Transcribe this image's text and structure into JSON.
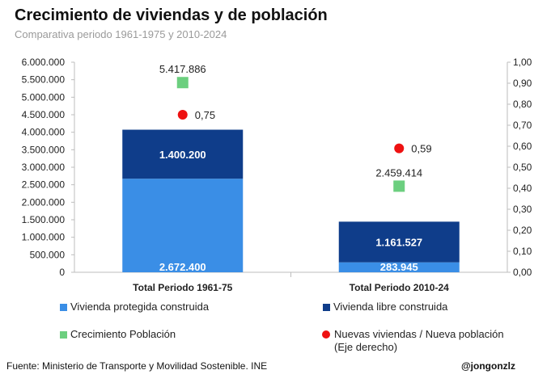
{
  "title": "Crecimiento de viviendas y de población",
  "subtitle": "Comparativa periodo 1961-1975 y 2010-2024",
  "colors": {
    "protegida": "#3a8ee6",
    "libre": "#0f3d8a",
    "poblacion": "#6ccf7f",
    "ratio": "#ee1111"
  },
  "chart_data": {
    "type": "bar",
    "stacked": true,
    "categories": [
      "Total Periodo 1961-75",
      "Total Periodo 2010-24"
    ],
    "series": [
      {
        "name": "Vivienda protegida construida",
        "values": [
          2672400,
          283945
        ],
        "labels": [
          "2.672.400",
          "283.945"
        ]
      },
      {
        "name": "Vivienda libre construida",
        "values": [
          1400200,
          1161527
        ],
        "labels": [
          "1.400.200",
          "1.161.527"
        ]
      },
      {
        "name": "Crecimiento Población",
        "type": "scatter",
        "marker": "square",
        "values": [
          5417886,
          2459414
        ],
        "labels": [
          "5.417.886",
          "2.459.414"
        ]
      },
      {
        "name": "Nuevas viviendas / Nueva población",
        "type": "scatter",
        "marker": "circle",
        "axis": "right",
        "values": [
          0.75,
          0.59
        ],
        "labels": [
          "0,75",
          "0,59"
        ]
      }
    ],
    "ylim": [
      0,
      6000000
    ],
    "y_ticks": [
      "0",
      "500.000",
      "1.000.000",
      "1.500.000",
      "2.000.000",
      "2.500.000",
      "3.000.000",
      "3.500.000",
      "4.000.000",
      "4.500.000",
      "5.000.000",
      "5.500.000",
      "6.000.000"
    ],
    "y2lim": [
      0,
      1
    ],
    "y2_ticks": [
      "0,00",
      "0,10",
      "0,20",
      "0,30",
      "0,40",
      "0,50",
      "0,60",
      "0,70",
      "0,80",
      "0,90",
      "1,00"
    ],
    "grid": false,
    "legend_position": "bottom"
  },
  "legend": {
    "protegida": "Vivienda protegida construida",
    "libre": "Vivienda libre construida",
    "poblacion": "Crecimiento Población",
    "ratio_line1": "Nuevas viviendas / Nueva población",
    "ratio_line2": "(Eje derecho)"
  },
  "footer": {
    "source": "Fuente: Ministerio de Transporte y Movilidad Sostenible. INE",
    "handle": "@jongonzlz"
  }
}
